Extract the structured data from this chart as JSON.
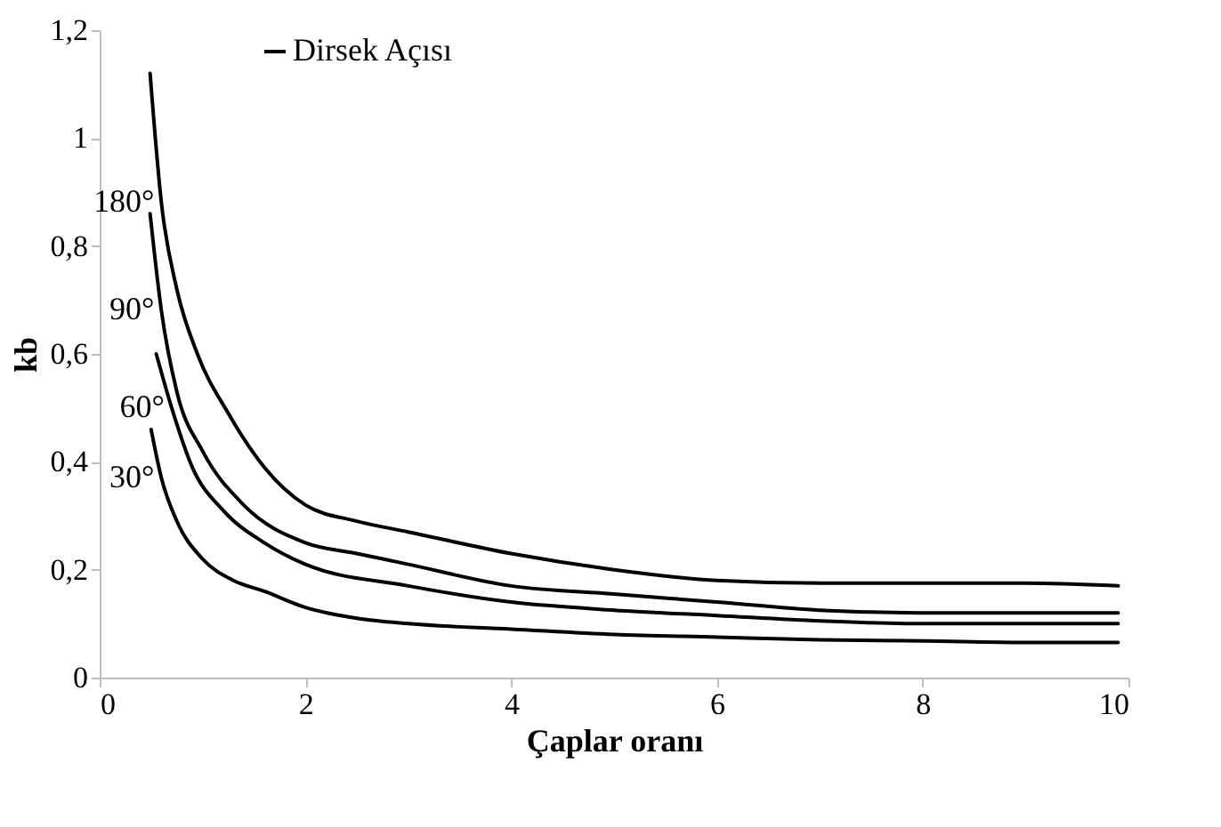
{
  "chart_data": {
    "type": "line",
    "xlabel": "Çaplar oranı",
    "ylabel": "kb",
    "legend_title": "Dirsek Açısı",
    "legend": "top",
    "grid": false,
    "marker": "none",
    "line_style": "solid",
    "xlim": [
      0,
      10
    ],
    "xticks": [
      0,
      2,
      4,
      6,
      8,
      10
    ],
    "ylim": [
      0,
      1.2
    ],
    "yticks": [
      0,
      {
        "value": 0.2,
        "label": "0,2"
      },
      {
        "value": 0.4,
        "label": "0,4"
      },
      {
        "value": 0.6,
        "label": "0,6"
      },
      {
        "value": 0.8,
        "label": "0,8"
      },
      1,
      {
        "value": 1.2,
        "label": "1,2"
      }
    ],
    "series": [
      {
        "name": "180°",
        "color": "#000000",
        "x": [
          0.49,
          0.6,
          0.75,
          0.95,
          1.25,
          1.6,
          2,
          2.5,
          3,
          4,
          5,
          6,
          7,
          8,
          9,
          9.9
        ],
        "values": [
          1.12,
          0.88,
          0.72,
          0.6,
          0.49,
          0.39,
          0.32,
          0.29,
          0.27,
          0.23,
          0.2,
          0.18,
          0.175,
          0.175,
          0.175,
          0.17
        ]
      },
      {
        "name": "90°",
        "color": "#000000",
        "x": [
          0.49,
          0.6,
          0.75,
          1.0,
          1.4,
          2,
          2.5,
          3,
          4,
          5,
          6,
          7,
          8,
          9,
          9.9
        ],
        "values": [
          0.86,
          0.68,
          0.53,
          0.42,
          0.32,
          0.25,
          0.23,
          0.21,
          0.17,
          0.155,
          0.14,
          0.125,
          0.12,
          0.12,
          0.12
        ]
      },
      {
        "name": "60°",
        "color": "#000000",
        "x": [
          0.55,
          0.7,
          0.9,
          1.2,
          1.6,
          2,
          3,
          4,
          5,
          6,
          7,
          8,
          9,
          9.9
        ],
        "values": [
          0.6,
          0.5,
          0.39,
          0.31,
          0.25,
          0.21,
          0.17,
          0.14,
          0.125,
          0.115,
          0.105,
          0.1,
          0.1,
          0.1
        ]
      },
      {
        "name": "30°",
        "color": "#000000",
        "x": [
          0.5,
          0.6,
          0.75,
          1.0,
          1.3,
          1.6,
          2,
          2.5,
          3,
          4,
          5,
          6,
          7,
          8,
          9,
          9.9
        ],
        "values": [
          0.46,
          0.37,
          0.29,
          0.22,
          0.18,
          0.16,
          0.13,
          0.11,
          0.1,
          0.09,
          0.08,
          0.075,
          0.07,
          0.068,
          0.065,
          0.065
        ]
      }
    ]
  }
}
